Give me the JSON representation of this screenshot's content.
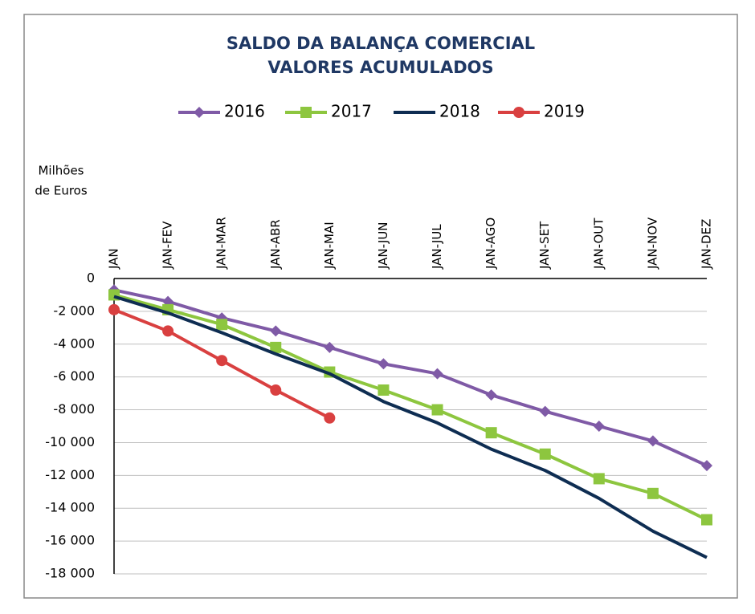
{
  "chart_data": {
    "type": "line",
    "title": "SALDO DA BALANÇA COMERCIAL",
    "subtitle": "VALORES ACUMULADOS",
    "y_label": [
      "Milhões",
      "de Euros"
    ],
    "categories": [
      "JAN",
      "JAN-FEV",
      "JAN-MAR",
      "JAN-ABR",
      "JAN-MAI",
      "JAN-JUN",
      "JAN-JUL",
      "JAN-AGO",
      "JAN-SET",
      "JAN-OUT",
      "JAN-NOV",
      "JAN-DEZ"
    ],
    "series": [
      {
        "name": "2016",
        "color": "#7f5aa6",
        "marker": "diamond",
        "values": [
          -700,
          -1400,
          -2400,
          -3200,
          -4200,
          -5200,
          -5800,
          -7100,
          -8100,
          -9000,
          -9900,
          -11400
        ]
      },
      {
        "name": "2017",
        "color": "#8dc63f",
        "marker": "square",
        "values": [
          -1000,
          -1900,
          -2800,
          -4200,
          -5700,
          -6800,
          -8000,
          -9400,
          -10700,
          -12200,
          -13100,
          -14700
        ]
      },
      {
        "name": "2018",
        "color": "#0e2d52",
        "values": [
          -1100,
          -2100,
          -3300,
          -4600,
          -5800,
          -7500,
          -8800,
          -10400,
          -11700,
          -13400,
          -15400,
          -17000
        ]
      },
      {
        "name": "2019",
        "color": "#d94040",
        "marker": "circle",
        "values": [
          -1900,
          -3200,
          -5000,
          -6800,
          -8500,
          null,
          null,
          null,
          null,
          null,
          null,
          null
        ]
      }
    ],
    "ylim": [
      -18000,
      0
    ],
    "yticks": [
      0,
      {
        "value": -2000,
        "label": "-2 000"
      },
      {
        "value": -4000,
        "label": "-4 000"
      },
      {
        "value": -6000,
        "label": "-6 000"
      },
      {
        "value": -8000,
        "label": "-8 000"
      },
      {
        "value": -10000,
        "label": "-10 000"
      },
      {
        "value": -12000,
        "label": "-12 000"
      },
      {
        "value": -14000,
        "label": "-14 000"
      },
      {
        "value": -16000,
        "label": "-16 000"
      },
      {
        "value": -18000,
        "label": "-18 000"
      }
    ],
    "grid": true,
    "legend": "top"
  }
}
